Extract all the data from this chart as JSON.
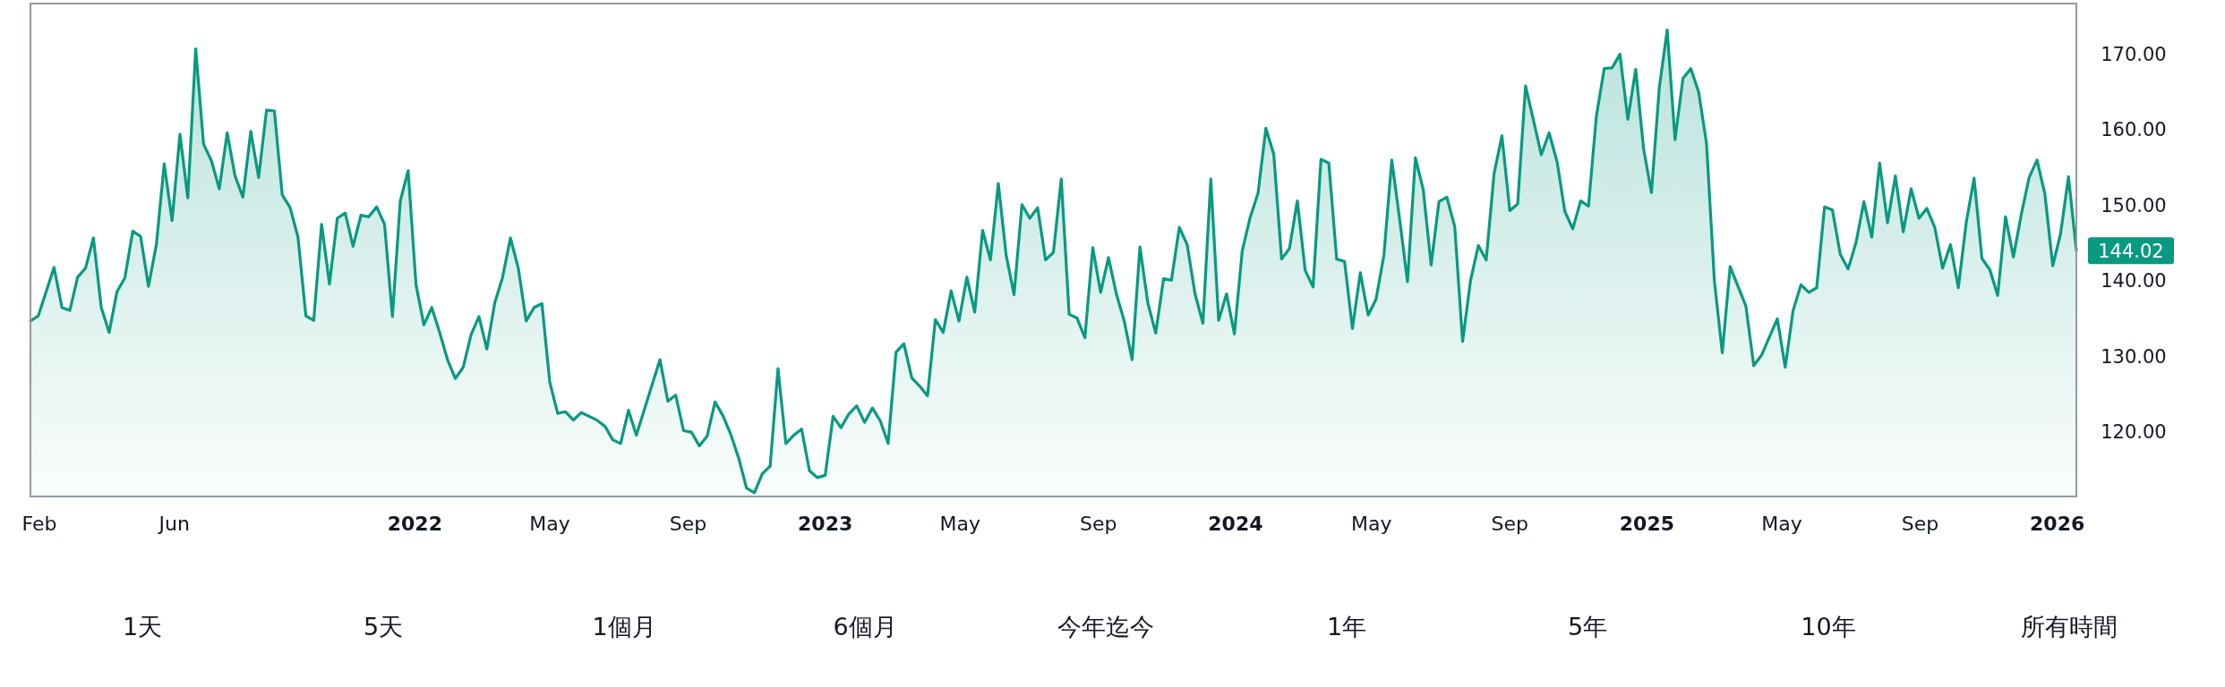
{
  "chart_data": {
    "type": "area",
    "color": "#089981",
    "xlim": [
      "2021-01-24",
      "2026-01-18"
    ],
    "ylim": [
      111.5,
      176.7
    ],
    "xticks": [
      {
        "value": "2021-02-01",
        "label": "Feb"
      },
      {
        "value": "2021-06-01",
        "label": "Jun"
      },
      {
        "value": "2022-01-01",
        "label": "2022"
      },
      {
        "value": "2022-05-01",
        "label": "May"
      },
      {
        "value": "2022-09-01",
        "label": "Sep"
      },
      {
        "value": "2023-01-01",
        "label": "2023"
      },
      {
        "value": "2023-05-01",
        "label": "May"
      },
      {
        "value": "2023-09-01",
        "label": "Sep"
      },
      {
        "value": "2024-01-01",
        "label": "2024"
      },
      {
        "value": "2024-05-01",
        "label": "May"
      },
      {
        "value": "2024-09-01",
        "label": "Sep"
      },
      {
        "value": "2025-01-01",
        "label": "2025"
      },
      {
        "value": "2025-05-01",
        "label": "May"
      },
      {
        "value": "2025-09-01",
        "label": "Sep"
      },
      {
        "value": "2026-01-01",
        "label": "2026"
      }
    ],
    "yticks": [
      {
        "value": 120,
        "label": "120.00"
      },
      {
        "value": 130,
        "label": "130.00"
      },
      {
        "value": 140,
        "label": "140.00"
      },
      {
        "value": 150,
        "label": "150.00"
      },
      {
        "value": 160,
        "label": "160.00"
      },
      {
        "value": 170,
        "label": "170.00"
      }
    ],
    "x": [
      "2021-01-24",
      "2021-01-31",
      "2021-02-14",
      "2021-02-21",
      "2021-02-28",
      "2021-03-07",
      "2021-03-14",
      "2021-03-21",
      "2021-03-28",
      "2021-04-04",
      "2021-04-11",
      "2021-04-18",
      "2021-04-25",
      "2021-05-02",
      "2021-05-09",
      "2021-05-16",
      "2021-05-23",
      "2021-05-30",
      "2021-06-06",
      "2021-06-13",
      "2021-06-20",
      "2021-06-27",
      "2021-07-04",
      "2021-07-11",
      "2021-07-18",
      "2021-07-25",
      "2021-08-01",
      "2021-08-08",
      "2021-08-15",
      "2021-08-22",
      "2021-08-29",
      "2021-09-05",
      "2021-09-12",
      "2021-09-19",
      "2021-09-26",
      "2021-10-03",
      "2021-10-10",
      "2021-10-17",
      "2021-10-24",
      "2021-10-31",
      "2021-11-07",
      "2021-11-14",
      "2021-11-21",
      "2021-11-28",
      "2021-12-05",
      "2021-12-12",
      "2021-12-19",
      "2021-12-26",
      "2022-01-02",
      "2022-01-09",
      "2022-01-16",
      "2022-01-23",
      "2022-01-30",
      "2022-02-06",
      "2022-02-13",
      "2022-02-20",
      "2022-02-27",
      "2022-03-06",
      "2022-03-13",
      "2022-03-20",
      "2022-03-27",
      "2022-04-03",
      "2022-04-10",
      "2022-04-17",
      "2022-04-24",
      "2022-05-01",
      "2022-05-08",
      "2022-05-15",
      "2022-05-22",
      "2022-05-29",
      "2022-06-12",
      "2022-06-19",
      "2022-06-26",
      "2022-07-03",
      "2022-07-10",
      "2022-07-17",
      "2022-08-07",
      "2022-08-14",
      "2022-08-21",
      "2022-08-28",
      "2022-09-04",
      "2022-09-11",
      "2022-09-18",
      "2022-09-25",
      "2022-10-02",
      "2022-10-09",
      "2022-10-16",
      "2022-10-23",
      "2022-10-30",
      "2022-11-06",
      "2022-11-13",
      "2022-11-20",
      "2022-11-27",
      "2022-12-04",
      "2022-12-11",
      "2022-12-18",
      "2022-12-25",
      "2023-01-01",
      "2023-01-08",
      "2023-01-15",
      "2023-01-22",
      "2023-01-29",
      "2023-02-05",
      "2023-02-12",
      "2023-02-19",
      "2023-02-26",
      "2023-03-05",
      "2023-03-12",
      "2023-03-19",
      "2023-03-26",
      "2023-04-02",
      "2023-04-09",
      "2023-04-16",
      "2023-04-23",
      "2023-04-30",
      "2023-05-07",
      "2023-05-14",
      "2023-05-21",
      "2023-05-28",
      "2023-06-04",
      "2023-06-11",
      "2023-06-18",
      "2023-06-25",
      "2023-07-02",
      "2023-07-09",
      "2023-07-16",
      "2023-07-23",
      "2023-07-30",
      "2023-08-06",
      "2023-08-13",
      "2023-08-20",
      "2023-08-27",
      "2023-09-03",
      "2023-09-10",
      "2023-09-17",
      "2023-09-24",
      "2023-10-01",
      "2023-10-08",
      "2023-10-15",
      "2023-10-22",
      "2023-10-29",
      "2023-11-05",
      "2023-11-12",
      "2023-11-19",
      "2023-11-26",
      "2023-12-03",
      "2023-12-10",
      "2023-12-17",
      "2023-12-24",
      "2023-12-31",
      "2024-01-07",
      "2024-01-14",
      "2024-01-21",
      "2024-01-28",
      "2024-02-04",
      "2024-02-11",
      "2024-02-18",
      "2024-02-25",
      "2024-03-03",
      "2024-03-10",
      "2024-03-17",
      "2024-03-24",
      "2024-03-31",
      "2024-04-07",
      "2024-04-14",
      "2024-04-21",
      "2024-04-28",
      "2024-05-05",
      "2024-05-12",
      "2024-05-19",
      "2024-05-26",
      "2024-06-02",
      "2024-06-09",
      "2024-06-16",
      "2024-06-23",
      "2024-06-30",
      "2024-07-07",
      "2024-07-14",
      "2024-07-21",
      "2024-07-28",
      "2024-08-04",
      "2024-08-11",
      "2024-08-18",
      "2024-08-25",
      "2024-09-01",
      "2024-09-08",
      "2024-09-15",
      "2024-09-22",
      "2024-09-29",
      "2024-10-06",
      "2024-10-13",
      "2024-10-20",
      "2024-10-27",
      "2024-11-03",
      "2024-11-10",
      "2024-11-17",
      "2024-11-24",
      "2024-12-01",
      "2024-12-08",
      "2024-12-15",
      "2024-12-22",
      "2024-12-29",
      "2025-01-05",
      "2025-01-12",
      "2025-01-19",
      "2025-01-26",
      "2025-02-02",
      "2025-02-09",
      "2025-02-16",
      "2025-02-23",
      "2025-03-02",
      "2025-03-09",
      "2025-03-16",
      "2025-03-23",
      "2025-03-30",
      "2025-04-06",
      "2025-04-13",
      "2025-04-20",
      "2025-04-27",
      "2025-05-04",
      "2025-05-11",
      "2025-05-18",
      "2025-05-25",
      "2025-06-01",
      "2025-06-08",
      "2025-06-15",
      "2025-06-22",
      "2025-06-29",
      "2025-07-06",
      "2025-07-13",
      "2025-07-20",
      "2025-07-27",
      "2025-08-03",
      "2025-08-10",
      "2025-08-17",
      "2025-08-24",
      "2025-08-31",
      "2025-09-07",
      "2025-09-14",
      "2025-09-21",
      "2025-09-28",
      "2025-10-05",
      "2025-10-12",
      "2025-10-19",
      "2025-10-26",
      "2025-11-02",
      "2025-11-09",
      "2025-11-16",
      "2025-11-23",
      "2025-11-30",
      "2025-12-07",
      "2025-12-14",
      "2025-12-21",
      "2025-12-28",
      "2026-01-04",
      "2026-01-11",
      "2026-01-18"
    ],
    "values": [
      134.7,
      135.4,
      141.8,
      136.5,
      136.1,
      140.5,
      141.7,
      145.7,
      136.5,
      133.2,
      138.6,
      140.4,
      146.6,
      145.9,
      139.3,
      144.8,
      155.5,
      148.0,
      159.4,
      151.0,
      170.7,
      158.1,
      155.9,
      152.2,
      159.6,
      153.9,
      151.1,
      159.8,
      153.7,
      162.6,
      162.5,
      151.4,
      149.7,
      145.8,
      135.4,
      134.8,
      147.5,
      139.6,
      148.3,
      149.0,
      144.6,
      148.7,
      148.5,
      149.8,
      147.5,
      135.3,
      150.6,
      154.6,
      139.5,
      134.2,
      136.5,
      133.2,
      129.6,
      127.1,
      128.6,
      132.9,
      135.3,
      131.0,
      137.1,
      140.5,
      145.7,
      141.7,
      134.7,
      136.5,
      137.0,
      126.6,
      122.5,
      122.7,
      121.6,
      122.6,
      121.6,
      120.8,
      119.0,
      118.5,
      122.9,
      119.6,
      129.6,
      124.1,
      124.9,
      120.2,
      120.0,
      118.2,
      119.5,
      124.0,
      122.2,
      119.7,
      116.6,
      112.6,
      112.0,
      114.5,
      115.5,
      128.4,
      118.5,
      119.6,
      120.4,
      114.9,
      114.0,
      114.3,
      122.1,
      120.6,
      122.4,
      123.5,
      121.3,
      123.2,
      121.5,
      118.5,
      130.6,
      131.7,
      127.2,
      126.1,
      124.8,
      134.9,
      133.2,
      138.7,
      134.7,
      140.5,
      135.9,
      146.7,
      142.8,
      152.9,
      143.4,
      138.2,
      150.1,
      148.3,
      149.7,
      142.8,
      143.8,
      153.5,
      135.6,
      135.1,
      132.5,
      144.4,
      138.5,
      143.1,
      138.3,
      134.7,
      129.6,
      144.5,
      137.1,
      133.1,
      140.3,
      140.1,
      147.1,
      144.8,
      138.3,
      134.4,
      153.5,
      134.8,
      138.3,
      133.0,
      144.0,
      148.4,
      151.6,
      160.2,
      156.8,
      142.9,
      144.3,
      150.6,
      141.4,
      139.2,
      156.1,
      155.6,
      142.9,
      142.6,
      133.7,
      141.1,
      135.5,
      137.6,
      143.4,
      156.0,
      148.2,
      139.9,
      156.3,
      152.1,
      142.1,
      150.5,
      151.1,
      147.2,
      132.0,
      140.0,
      144.7,
      142.8,
      154.2,
      159.2,
      149.3,
      150.2,
      165.8,
      161.3,
      156.7,
      159.6,
      155.8,
      149.2,
      146.9,
      150.6,
      149.9,
      161.8,
      168.1,
      168.2,
      170.0,
      161.4,
      168.0,
      157.5,
      151.7,
      165.6,
      173.2,
      158.7,
      166.8,
      168.1,
      165.0,
      158.2,
      140.0,
      130.5,
      141.9,
      139.3,
      136.7,
      128.8,
      130.2,
      132.6,
      135.0,
      128.6,
      136.1,
      139.5,
      138.5,
      139.1,
      149.8,
      149.4,
      143.5,
      141.6,
      145.1,
      150.5,
      145.8,
      155.6,
      147.7,
      153.9,
      146.5,
      152.2,
      148.3,
      149.6,
      147.1,
      141.7,
      144.8,
      139.1,
      147.7,
      153.6,
      143.0,
      141.5,
      138.1,
      148.5,
      143.2,
      148.8,
      153.7,
      156.0,
      151.5,
      142.0,
      146.3,
      153.8,
      144.02
    ],
    "annotations": [
      {
        "text": "144.02",
        "x": "2026-01-18",
        "y": 144.02
      },
      "1天",
      "5天",
      "1個月",
      "6個月",
      "今年迄今",
      "1年",
      "5年",
      "10年",
      "所有時間"
    ]
  }
}
